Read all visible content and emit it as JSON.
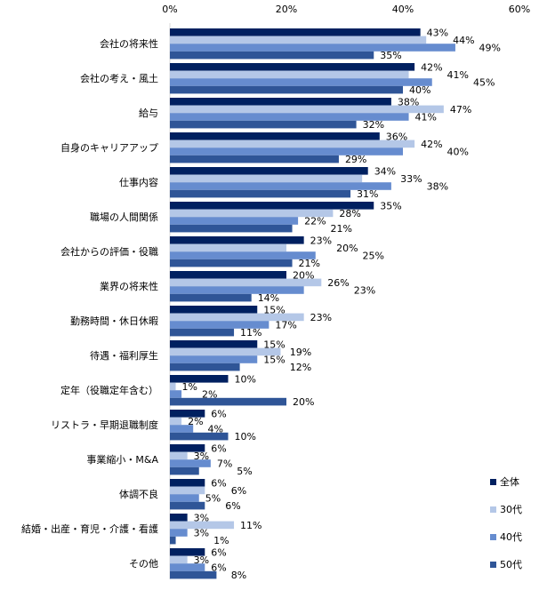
{
  "chart_data": {
    "type": "bar",
    "orientation": "horizontal",
    "xlim": [
      0,
      60
    ],
    "x_ticks": [
      "0%",
      "20%",
      "40%",
      "60%"
    ],
    "grid": false,
    "legend_position": "bottom-right",
    "categories": [
      "会社の将来性",
      "会社の考え・風土",
      "給与",
      "自身のキャリアアップ",
      "仕事内容",
      "職場の人間関係",
      "会社からの評価・役職",
      "業界の将来性",
      "勤務時間・休日休暇",
      "待遇・福利厚生",
      "定年（役職定年含む）",
      "リストラ・早期退職制度",
      "事業縮小・M&A",
      "体調不良",
      "結婚・出産・育児・介護・看護",
      "その他"
    ],
    "series": [
      {
        "name": "全体",
        "color": "#002060",
        "values": [
          43,
          42,
          38,
          36,
          34,
          35,
          23,
          20,
          15,
          15,
          10,
          6,
          6,
          6,
          3,
          6
        ]
      },
      {
        "name": "30代",
        "color": "#b4c7e7",
        "values": [
          44,
          41,
          47,
          42,
          33,
          28,
          20,
          26,
          23,
          19,
          1,
          2,
          3,
          6,
          11,
          3
        ]
      },
      {
        "name": "40代",
        "color": "#668ccf",
        "values": [
          49,
          45,
          41,
          40,
          38,
          22,
          25,
          23,
          17,
          15,
          2,
          4,
          7,
          5,
          3,
          6
        ]
      },
      {
        "name": "50代",
        "color": "#2f5597",
        "values": [
          35,
          40,
          32,
          29,
          31,
          21,
          21,
          14,
          11,
          12,
          20,
          10,
          5,
          6,
          1,
          8
        ]
      }
    ],
    "value_suffix": "%"
  }
}
